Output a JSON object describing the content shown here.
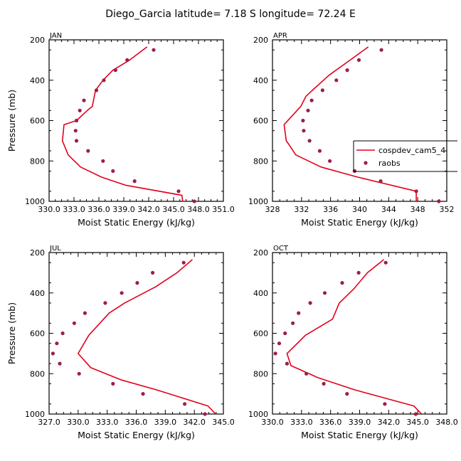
{
  "title": "Diego_Garcia   latitude=  7.18 S  longitude=  72.24 E",
  "colors": {
    "model": "#e3001b",
    "obs": "#9b1f4a"
  },
  "legend": {
    "model_label": "cospdev_cam5_4",
    "obs_label": "raobs"
  },
  "chart_data": [
    {
      "type": "line",
      "title": "JAN",
      "xlabel": "Moist Static Energy (kJ/kg)",
      "ylabel": "Pressure (mb)",
      "xlim": [
        330.0,
        351.0
      ],
      "ylim": [
        1000,
        200
      ],
      "xticks": [
        "330.0",
        "333.0",
        "336.0",
        "339.0",
        "342.0",
        "345.0",
        "348.0",
        "351.0"
      ],
      "yticks": [
        200,
        400,
        600,
        800,
        1000
      ],
      "series": [
        {
          "name": "cospdev_cam5_4",
          "kind": "line",
          "x": [
            341.8,
            339.7,
            337.7,
            336.5,
            335.6,
            335.2,
            334.6,
            333.3,
            331.8,
            331.6,
            331.9,
            332.3,
            333.8,
            336.3,
            339.2,
            346.0,
            346.1
          ],
          "y": [
            235,
            300,
            350,
            400,
            450,
            530,
            550,
            600,
            620,
            700,
            730,
            770,
            830,
            880,
            920,
            970,
            1000
          ]
        },
        {
          "name": "raobs",
          "kind": "scatter",
          "x": [
            342.6,
            339.4,
            338.0,
            336.6,
            335.7,
            334.2,
            333.7,
            333.3,
            333.2,
            333.3,
            334.7,
            336.5,
            337.7,
            340.3,
            345.6,
            347.5
          ],
          "y": [
            250,
            300,
            350,
            400,
            450,
            500,
            550,
            600,
            650,
            700,
            750,
            800,
            850,
            900,
            950,
            1000
          ]
        }
      ]
    },
    {
      "type": "line",
      "title": "APR",
      "xlabel": "Moist Static Energy (kJ/kg)",
      "ylabel": "",
      "xlim": [
        328,
        352
      ],
      "ylim": [
        1000,
        200
      ],
      "xticks": [
        "328",
        "332",
        "336",
        "340",
        "344",
        "348",
        "352"
      ],
      "yticks": [
        200,
        400,
        600,
        800,
        1000
      ],
      "series": [
        {
          "name": "cospdev_cam5_4",
          "kind": "line",
          "x": [
            341.2,
            338.7,
            335.8,
            333.5,
            332.6,
            331.9,
            329.6,
            329.9,
            330.3,
            331.2,
            334.7,
            339.7,
            347.8,
            347.8
          ],
          "y": [
            235,
            300,
            375,
            450,
            480,
            530,
            620,
            700,
            720,
            770,
            830,
            880,
            950,
            1000
          ]
        },
        {
          "name": "raobs",
          "kind": "scatter",
          "x": [
            343.0,
            339.9,
            338.3,
            336.8,
            334.9,
            333.4,
            332.9,
            332.2,
            332.3,
            333.1,
            334.5,
            335.9,
            339.3,
            342.9,
            347.8,
            350.9
          ],
          "y": [
            250,
            300,
            350,
            400,
            450,
            500,
            550,
            600,
            650,
            700,
            750,
            800,
            850,
            900,
            950,
            1000
          ]
        }
      ]
    },
    {
      "type": "line",
      "title": "JUL",
      "xlabel": "Moist Static Energy (kJ/kg)",
      "ylabel": "Pressure (mb)",
      "xlim": [
        327.0,
        345.0
      ],
      "ylim": [
        1000,
        200
      ],
      "xticks": [
        "327.0",
        "330.0",
        "333.0",
        "336.0",
        "339.0",
        "342.0",
        "345.0"
      ],
      "yticks": [
        200,
        400,
        600,
        800,
        1000
      ],
      "series": [
        {
          "name": "cospdev_cam5_4",
          "kind": "line",
          "x": [
            341.8,
            340.2,
            338.0,
            334.8,
            333.2,
            331.1,
            330.0,
            331.3,
            334.4,
            338.1,
            343.4,
            344.2
          ],
          "y": [
            235,
            300,
            370,
            450,
            500,
            610,
            700,
            770,
            830,
            880,
            960,
            1000
          ]
        },
        {
          "name": "raobs",
          "kind": "scatter",
          "x": [
            340.9,
            337.7,
            336.1,
            334.5,
            332.8,
            330.7,
            329.6,
            328.4,
            327.8,
            327.4,
            328.1,
            330.1,
            333.6,
            336.7,
            341.0,
            343.1
          ],
          "y": [
            250,
            300,
            350,
            400,
            450,
            500,
            550,
            600,
            650,
            700,
            750,
            800,
            850,
            900,
            950,
            1000
          ]
        }
      ]
    },
    {
      "type": "line",
      "title": "OCT",
      "xlabel": "Moist Static Energy (kJ/kg)",
      "ylabel": "",
      "xlim": [
        330.0,
        348.0
      ],
      "ylim": [
        1000,
        200
      ],
      "xticks": [
        "330.0",
        "333.0",
        "336.0",
        "339.0",
        "342.0",
        "345.0",
        "348.0"
      ],
      "yticks": [
        200,
        400,
        600,
        800,
        1000
      ],
      "series": [
        {
          "name": "cospdev_cam5_4",
          "kind": "line",
          "x": [
            341.5,
            339.8,
            338.4,
            336.9,
            336.2,
            333.4,
            331.5,
            331.9,
            334.7,
            338.5,
            344.6,
            345.4
          ],
          "y": [
            235,
            300,
            380,
            450,
            530,
            610,
            700,
            760,
            820,
            880,
            960,
            1000
          ]
        },
        {
          "name": "raobs",
          "kind": "scatter",
          "x": [
            341.7,
            338.9,
            337.2,
            335.4,
            333.9,
            332.7,
            332.1,
            331.3,
            330.7,
            330.3,
            331.5,
            333.5,
            335.3,
            337.7,
            341.6,
            344.8
          ],
          "y": [
            250,
            300,
            350,
            400,
            450,
            500,
            550,
            600,
            650,
            700,
            750,
            800,
            850,
            900,
            950,
            1000
          ]
        }
      ]
    }
  ]
}
